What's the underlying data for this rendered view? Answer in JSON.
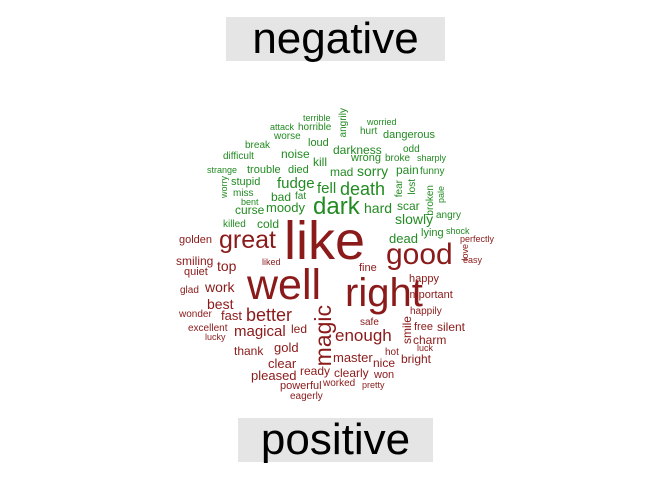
{
  "labels": {
    "negative": "negative",
    "positive": "positive"
  },
  "colors": {
    "negative": "#228B22",
    "positive": "#8B1A1A",
    "label_bg": "#e5e5e5"
  },
  "words": [
    {
      "t": "terrible",
      "c": "negative"
    },
    {
      "t": "worried",
      "c": "negative"
    },
    {
      "t": "attack",
      "c": "negative"
    },
    {
      "t": "horrible",
      "c": "negative"
    },
    {
      "t": "angrily",
      "c": "negative"
    },
    {
      "t": "hurt",
      "c": "negative"
    },
    {
      "t": "worse",
      "c": "negative"
    },
    {
      "t": "dangerous",
      "c": "negative"
    },
    {
      "t": "loud",
      "c": "negative"
    },
    {
      "t": "odd",
      "c": "negative"
    },
    {
      "t": "break",
      "c": "negative"
    },
    {
      "t": "darkness",
      "c": "negative"
    },
    {
      "t": "noise",
      "c": "negative"
    },
    {
      "t": "difficult",
      "c": "negative"
    },
    {
      "t": "wrong",
      "c": "negative"
    },
    {
      "t": "broke",
      "c": "negative"
    },
    {
      "t": "sharply",
      "c": "negative"
    },
    {
      "t": "kill",
      "c": "negative"
    },
    {
      "t": "strange",
      "c": "negative"
    },
    {
      "t": "trouble",
      "c": "negative"
    },
    {
      "t": "died",
      "c": "negative"
    },
    {
      "t": "mad",
      "c": "negative"
    },
    {
      "t": "sorry",
      "c": "negative"
    },
    {
      "t": "pain",
      "c": "negative"
    },
    {
      "t": "funny",
      "c": "negative"
    },
    {
      "t": "worry",
      "c": "negative"
    },
    {
      "t": "stupid",
      "c": "negative"
    },
    {
      "t": "fudge",
      "c": "negative"
    },
    {
      "t": "death",
      "c": "negative"
    },
    {
      "t": "fear",
      "c": "negative"
    },
    {
      "t": "lost",
      "c": "negative"
    },
    {
      "t": "miss",
      "c": "negative"
    },
    {
      "t": "fell",
      "c": "negative"
    },
    {
      "t": "bad",
      "c": "negative"
    },
    {
      "t": "fat",
      "c": "negative"
    },
    {
      "t": "broken",
      "c": "negative"
    },
    {
      "t": "pale",
      "c": "negative"
    },
    {
      "t": "bent",
      "c": "negative"
    },
    {
      "t": "dark",
      "c": "negative"
    },
    {
      "t": "scar",
      "c": "negative"
    },
    {
      "t": "curse",
      "c": "negative"
    },
    {
      "t": "moody",
      "c": "negative"
    },
    {
      "t": "hard",
      "c": "negative"
    },
    {
      "t": "angry",
      "c": "negative"
    },
    {
      "t": "killed",
      "c": "negative"
    },
    {
      "t": "cold",
      "c": "negative"
    },
    {
      "t": "slowly",
      "c": "negative"
    },
    {
      "t": "shock",
      "c": "negative"
    },
    {
      "t": "lying",
      "c": "negative"
    },
    {
      "t": "perfectly",
      "c": "positive"
    },
    {
      "t": "golden",
      "c": "positive"
    },
    {
      "t": "great",
      "c": "positive"
    },
    {
      "t": "like",
      "c": "positive"
    },
    {
      "t": "dead",
      "c": "negative"
    },
    {
      "t": "love",
      "c": "positive"
    },
    {
      "t": "good",
      "c": "positive"
    },
    {
      "t": "smiling",
      "c": "positive"
    },
    {
      "t": "liked",
      "c": "positive"
    },
    {
      "t": "easy",
      "c": "positive"
    },
    {
      "t": "quiet",
      "c": "positive"
    },
    {
      "t": "top",
      "c": "positive"
    },
    {
      "t": "fine",
      "c": "positive"
    },
    {
      "t": "happy",
      "c": "positive"
    },
    {
      "t": "glad",
      "c": "positive"
    },
    {
      "t": "work",
      "c": "positive"
    },
    {
      "t": "well",
      "c": "positive"
    },
    {
      "t": "right",
      "c": "positive"
    },
    {
      "t": "important",
      "c": "positive"
    },
    {
      "t": "best",
      "c": "positive"
    },
    {
      "t": "happily",
      "c": "positive"
    },
    {
      "t": "wonder",
      "c": "positive"
    },
    {
      "t": "fast",
      "c": "positive"
    },
    {
      "t": "better",
      "c": "positive"
    },
    {
      "t": "magic",
      "c": "positive"
    },
    {
      "t": "safe",
      "c": "positive"
    },
    {
      "t": "excellent",
      "c": "positive"
    },
    {
      "t": "led",
      "c": "positive"
    },
    {
      "t": "smile",
      "c": "positive"
    },
    {
      "t": "free",
      "c": "positive"
    },
    {
      "t": "silent",
      "c": "positive"
    },
    {
      "t": "magical",
      "c": "positive"
    },
    {
      "t": "enough",
      "c": "positive"
    },
    {
      "t": "lucky",
      "c": "positive"
    },
    {
      "t": "charm",
      "c": "positive"
    },
    {
      "t": "gold",
      "c": "positive"
    },
    {
      "t": "luck",
      "c": "positive"
    },
    {
      "t": "thank",
      "c": "positive"
    },
    {
      "t": "master",
      "c": "positive"
    },
    {
      "t": "hot",
      "c": "positive"
    },
    {
      "t": "bright",
      "c": "positive"
    },
    {
      "t": "clear",
      "c": "positive"
    },
    {
      "t": "nice",
      "c": "positive"
    },
    {
      "t": "ready",
      "c": "positive"
    },
    {
      "t": "clearly",
      "c": "positive"
    },
    {
      "t": "pleased",
      "c": "positive"
    },
    {
      "t": "won",
      "c": "positive"
    },
    {
      "t": "powerful",
      "c": "positive"
    },
    {
      "t": "worked",
      "c": "positive"
    },
    {
      "t": "pretty",
      "c": "positive"
    },
    {
      "t": "eagerly",
      "c": "positive"
    }
  ]
}
